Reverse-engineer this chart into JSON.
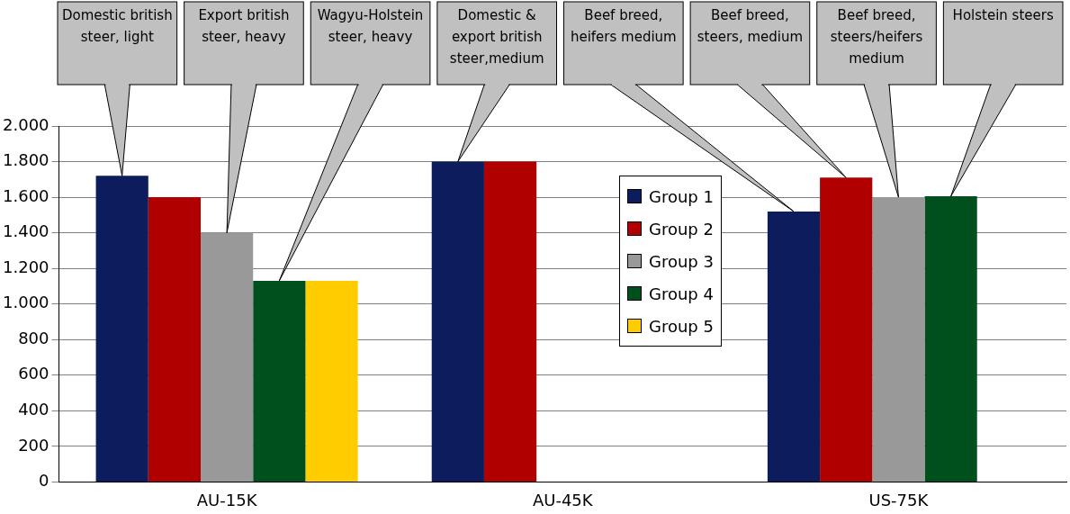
{
  "chart_data": {
    "type": "bar",
    "categories": [
      "AU-15K",
      "AU-45K",
      "US-75K"
    ],
    "series": [
      {
        "name": "Group 1",
        "color": "#0c1c5c",
        "values": [
          1720,
          1800,
          1520
        ]
      },
      {
        "name": "Group 2",
        "color": "#b00000",
        "values": [
          1600,
          1800,
          1710
        ]
      },
      {
        "name": "Group 3",
        "color": "#999999",
        "values": [
          1400,
          null,
          1600
        ]
      },
      {
        "name": "Group 4",
        "color": "#00501e",
        "values": [
          1130,
          null,
          1605
        ]
      },
      {
        "name": "Group 5",
        "color": "#ffcc00",
        "values": [
          1130,
          null,
          null
        ]
      }
    ],
    "ylim": [
      0,
      2000
    ],
    "yticks": [
      {
        "value": 0,
        "label": "0"
      },
      {
        "value": 200,
        "label": "200"
      },
      {
        "value": 400,
        "label": "400"
      },
      {
        "value": 600,
        "label": "600"
      },
      {
        "value": 800,
        "label": "800"
      },
      {
        "value": 1000,
        "label": "1.000"
      },
      {
        "value": 1200,
        "label": "1.200"
      },
      {
        "value": 1400,
        "label": "1.400"
      },
      {
        "value": 1600,
        "label": "1.600"
      },
      {
        "value": 1800,
        "label": "1.800"
      },
      {
        "value": 2000,
        "label": "2.000"
      }
    ],
    "grid": "y",
    "legend": "center right",
    "annotations": [
      "Domestic british steer, light",
      "Export british steer, heavy",
      "Wagyu-Holstein steer, heavy",
      "Domestic & export british steer,medium",
      "Beef breed, heifers medium",
      "Beef breed, steers, medium",
      "Beef breed, steers/heifers medium",
      "Holstein steers"
    ]
  }
}
